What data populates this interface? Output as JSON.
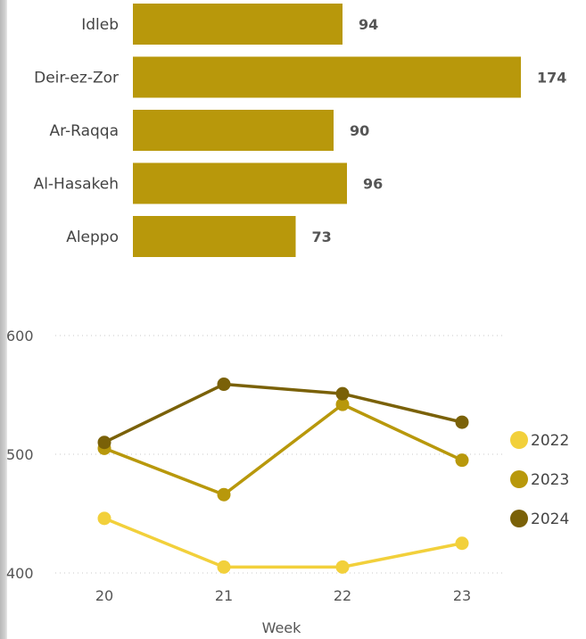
{
  "chart_data": [
    {
      "type": "bar",
      "orientation": "horizontal",
      "categories": [
        "Idleb",
        "Deir-ez-Zor",
        "Ar-Raqqa",
        "Al-Hasakeh",
        "Aleppo"
      ],
      "values": [
        94,
        174,
        90,
        96,
        73
      ],
      "color": "#b8980b",
      "data_labels": true
    },
    {
      "type": "line",
      "x": [
        20,
        21,
        22,
        23
      ],
      "xlabel": "Week",
      "ylabel": "",
      "ylim": [
        400,
        600
      ],
      "yticks": [
        400,
        500,
        600
      ],
      "grid": "horizontal-dotted",
      "legend_position": "right",
      "series": [
        {
          "name": "2022",
          "values": [
            446,
            405,
            405,
            425
          ],
          "color": "#f2d03b"
        },
        {
          "name": "2023",
          "values": [
            505,
            466,
            542,
            495
          ],
          "color": "#b8980b"
        },
        {
          "name": "2024",
          "values": [
            510,
            559,
            551,
            527
          ],
          "color": "#7a6108"
        }
      ]
    }
  ]
}
